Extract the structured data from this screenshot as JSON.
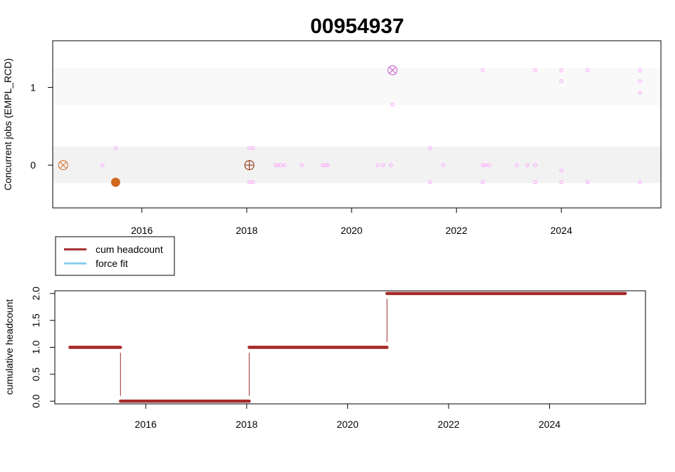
{
  "chart_data": [
    {
      "type": "scatter",
      "title": "00954937",
      "ylabel": "Concurrent jobs (EMPL_RCD)",
      "xlim": [
        2014.3,
        2025.9
      ],
      "ylim": [
        -0.55,
        1.6
      ],
      "x_ticks": [
        "2016",
        "2018",
        "2020",
        "2022",
        "2024"
      ],
      "y_ticks": [
        "0",
        "1"
      ],
      "bands": [
        {
          "ymin": -0.23,
          "ymax": 0.24,
          "color": "#f2f2f2"
        },
        {
          "ymin": 0.77,
          "ymax": 1.25,
          "color": "#f9f9f9"
        }
      ],
      "small_points_color": "#ff99ff",
      "small_points": [
        [
          2015.25,
          0.0
        ],
        [
          2015.5,
          0.22
        ],
        [
          2018.05,
          0.22
        ],
        [
          2018.12,
          0.22
        ],
        [
          2018.05,
          -0.22
        ],
        [
          2018.12,
          -0.22
        ],
        [
          2018.55,
          0.0
        ],
        [
          2018.6,
          0.0
        ],
        [
          2018.65,
          0.0
        ],
        [
          2018.72,
          0.0
        ],
        [
          2019.05,
          0.0
        ],
        [
          2019.45,
          0.0
        ],
        [
          2019.5,
          0.0
        ],
        [
          2019.55,
          0.0
        ],
        [
          2020.5,
          0.0
        ],
        [
          2020.6,
          0.0
        ],
        [
          2020.75,
          0.0
        ],
        [
          2020.78,
          0.78
        ],
        [
          2021.5,
          0.22
        ],
        [
          2021.5,
          -0.22
        ],
        [
          2021.75,
          0.0
        ],
        [
          2022.5,
          1.22
        ],
        [
          2022.5,
          0.0
        ],
        [
          2022.55,
          0.0
        ],
        [
          2022.62,
          0.0
        ],
        [
          2022.5,
          -0.22
        ],
        [
          2023.15,
          0.0
        ],
        [
          2023.35,
          0.0
        ],
        [
          2023.5,
          0.0
        ],
        [
          2023.5,
          1.22
        ],
        [
          2023.5,
          -0.22
        ],
        [
          2024.0,
          1.22
        ],
        [
          2024.0,
          1.08
        ],
        [
          2024.0,
          -0.07
        ],
        [
          2024.0,
          -0.22
        ],
        [
          2024.5,
          1.22
        ],
        [
          2024.5,
          -0.22
        ],
        [
          2025.5,
          1.22
        ],
        [
          2025.5,
          1.08
        ],
        [
          2025.5,
          0.93
        ],
        [
          2025.5,
          -0.22
        ]
      ],
      "markers": [
        {
          "x": 2014.5,
          "y": 0.0,
          "shape": "circle-x",
          "color": "#d2691e"
        },
        {
          "x": 2015.5,
          "y": -0.22,
          "shape": "filled-circle",
          "color": "#d2691e"
        },
        {
          "x": 2018.05,
          "y": 0.0,
          "shape": "circle-plus",
          "color": "#8b2500"
        },
        {
          "x": 2020.78,
          "y": 1.22,
          "shape": "circle-x",
          "color": "#cc55cc"
        }
      ]
    },
    {
      "type": "line",
      "ylabel": "cumulative headcount",
      "xlim": [
        2014.2,
        2025.9
      ],
      "ylim": [
        -0.05,
        2.05
      ],
      "x_ticks": [
        "2016",
        "2018",
        "2020",
        "2022",
        "2024"
      ],
      "y_ticks": [
        "0.0",
        "0.5",
        "1.0",
        "1.5",
        "2.0"
      ],
      "legend": {
        "position": "top-left",
        "entries": [
          {
            "label": "cum headcount",
            "color": "#a52a2a"
          },
          {
            "label": "force fit",
            "color": "#87ceeb"
          }
        ]
      },
      "series": [
        {
          "name": "cum headcount",
          "color": "#a52a2a",
          "segments": [
            {
              "x0": 2014.5,
              "x1": 2015.5,
              "y": 1
            },
            {
              "x0": 2015.5,
              "x1": 2018.05,
              "y": 0
            },
            {
              "x0": 2018.05,
              "x1": 2020.78,
              "y": 1
            },
            {
              "x0": 2020.78,
              "x1": 2025.5,
              "y": 2
            }
          ],
          "steps": [
            {
              "x": 2015.5,
              "y0": 0.1,
              "y1": 0.9
            },
            {
              "x": 2018.05,
              "y0": 0.1,
              "y1": 0.9
            },
            {
              "x": 2020.78,
              "y0": 1.1,
              "y1": 1.9
            }
          ]
        }
      ]
    }
  ]
}
